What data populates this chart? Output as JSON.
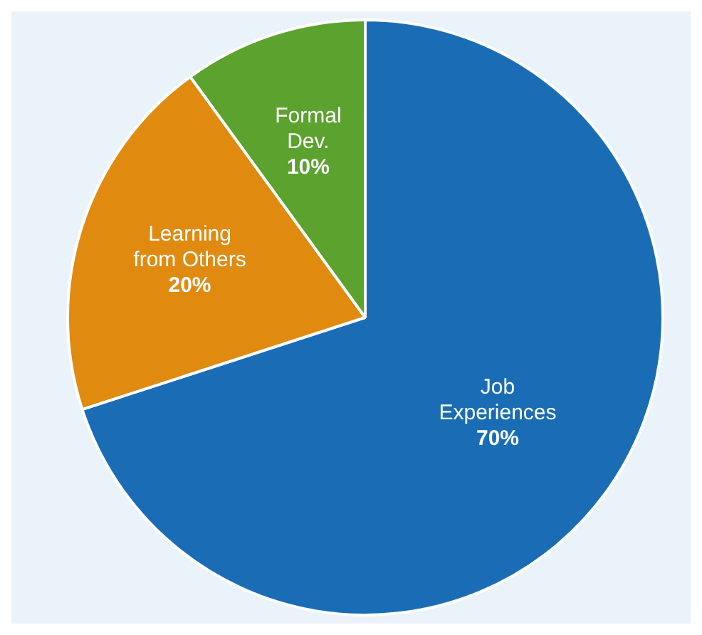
{
  "chart_data": {
    "type": "pie",
    "categories": [
      "Job Experiences",
      "Learning from Others",
      "Formal Dev."
    ],
    "values": [
      70,
      20,
      10
    ],
    "colors": [
      "#1a6db5",
      "#e08a10",
      "#5ba22e"
    ],
    "value_labels": [
      "70%",
      "20%",
      "10%"
    ],
    "legend": false
  }
}
